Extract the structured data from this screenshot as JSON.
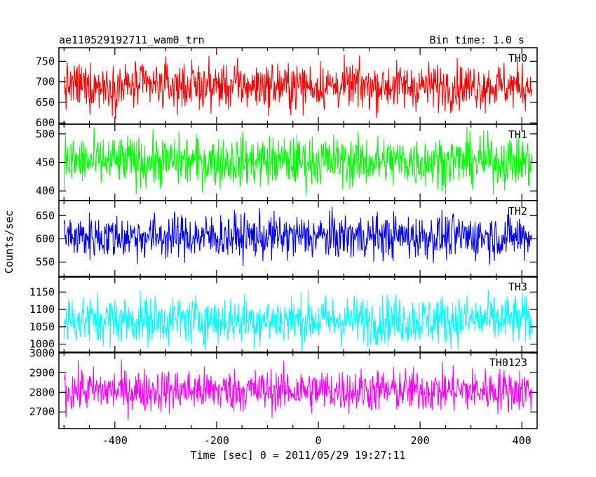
{
  "header": {
    "left_title": "ae110529192711_wam0_trn",
    "right_title": "Bin time: 1.0 s"
  },
  "chart_data": {
    "type": "line",
    "ylabel": "Counts/sec",
    "xlabel": "Time [sec] 0 = 2011/05/29 19:27:11",
    "xlim": [
      -510,
      430
    ],
    "data_x_range": [
      -500,
      420
    ],
    "x_ticks": [
      -400,
      -200,
      0,
      200,
      400
    ],
    "panels": [
      {
        "name": "TH0",
        "color": "#ff0000",
        "ylim": [
          597,
          783
        ],
        "yticks": [
          600,
          650,
          700,
          750
        ],
        "mean": 690,
        "noise": 28
      },
      {
        "name": "TH1",
        "color": "#00ff00",
        "ylim": [
          383,
          517
        ],
        "yticks": [
          400,
          450,
          500
        ],
        "mean": 452,
        "noise": 22
      },
      {
        "name": "TH2",
        "color": "#0000ff",
        "ylim": [
          518,
          682
        ],
        "yticks": [
          550,
          600,
          650
        ],
        "mean": 605,
        "noise": 24
      },
      {
        "name": "TH3",
        "color": "#00ffff",
        "ylim": [
          975,
          1195
        ],
        "yticks": [
          1000,
          1050,
          1100,
          1150
        ],
        "mean": 1070,
        "noise": 35
      },
      {
        "name": "TH0123",
        "color": "#ff00ff",
        "ylim": [
          2615,
          3005
        ],
        "yticks": [
          2700,
          2800,
          2900,
          3000
        ],
        "mean": 2810,
        "noise": 55
      }
    ]
  }
}
